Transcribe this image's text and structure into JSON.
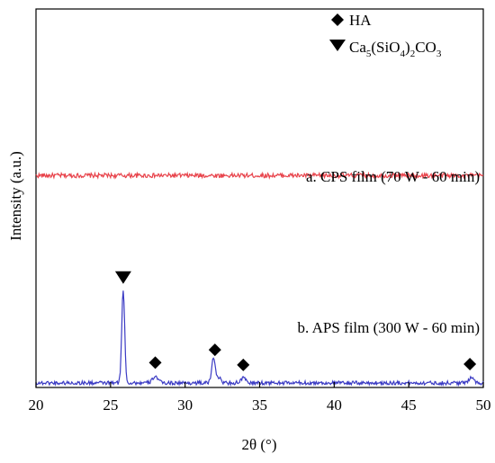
{
  "chart_data": {
    "type": "line",
    "xlabel": "2θ (°)",
    "ylabel": "Intensity (a.u.)",
    "xlim": [
      20,
      50
    ],
    "xticks": [
      20,
      25,
      30,
      35,
      40,
      45,
      50
    ],
    "y_tick_labels": "none",
    "grid": false,
    "legend_position": "top-right",
    "legend": [
      {
        "marker": "diamond",
        "label": "HA"
      },
      {
        "marker": "triangle-down",
        "label": "Ca5(SiO4)2CO3",
        "label_parts": [
          "Ca",
          "5",
          "(SiO",
          "4",
          ")",
          "2",
          "CO",
          "3"
        ]
      }
    ],
    "series": [
      {
        "annotation": "a. CPS film (70 W - 60 min)",
        "color": "#e8434b",
        "baseline": 0.56,
        "noise": 0.006,
        "peaks": []
      },
      {
        "annotation": "b. APS film (300 W - 60 min)",
        "color": "#3b3bc4",
        "baseline": 0.012,
        "noise": 0.005,
        "peaks": [
          {
            "x": 25.85,
            "h": 0.245,
            "w": 0.14
          },
          {
            "x": 28.0,
            "h": 0.018,
            "w": 0.25
          },
          {
            "x": 31.9,
            "h": 0.065,
            "w": 0.16
          },
          {
            "x": 32.2,
            "h": 0.015,
            "w": 0.25
          },
          {
            "x": 33.9,
            "h": 0.012,
            "w": 0.25
          },
          {
            "x": 49.2,
            "h": 0.018,
            "w": 0.2
          }
        ]
      }
    ],
    "phase_markers": [
      {
        "phase": "Ca5(SiO4)2CO3",
        "marker": "triangle-down",
        "x": 25.85
      },
      {
        "phase": "HA",
        "marker": "diamond",
        "x": 28.0
      },
      {
        "phase": "HA",
        "marker": "diamond",
        "x": 32.0
      },
      {
        "phase": "HA",
        "marker": "diamond",
        "x": 33.9
      },
      {
        "phase": "HA",
        "marker": "diamond",
        "x": 49.1
      }
    ],
    "colors": {
      "axis": "#000000",
      "markers": "#000000"
    }
  }
}
